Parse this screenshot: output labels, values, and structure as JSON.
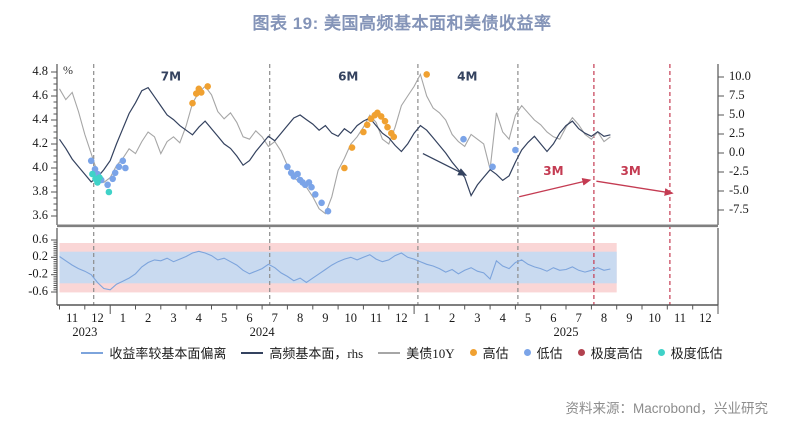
{
  "title": "图表 19: 美国高频基本面和美债收益率",
  "source": "资料来源：Macrobond，兴业研究",
  "colors": {
    "title": "#8494b8",
    "navy": "#34425f",
    "gray_line": "#a6a6a6",
    "light_blue": "#7da4dc",
    "orange": "#f0a131",
    "blue_dot": "#7ba4e8",
    "cyan": "#3fd2c8",
    "dark_red": "#b2424f",
    "red_annotation": "#c43b52",
    "gray_dash": "#8c8c8c",
    "axis": "#555555",
    "thick_axis": "#808080",
    "band_pink": "#fad6d6",
    "band_blue": "#c9daf0",
    "tick_text": "#1a1a1a"
  },
  "legend": {
    "items": [
      {
        "label": "收益率较基本面偏离",
        "type": "line",
        "color": "light_blue"
      },
      {
        "label": "高频基本面，rhs",
        "type": "line",
        "color": "navy"
      },
      {
        "label": "美债10Y",
        "type": "line",
        "color": "gray_line"
      },
      {
        "label": "高估",
        "type": "dot",
        "color": "orange"
      },
      {
        "label": "低估",
        "type": "dot",
        "color": "blue_dot"
      },
      {
        "label": "极度高估",
        "type": "dot",
        "color": "dark_red"
      },
      {
        "label": "极度低估",
        "type": "dot",
        "color": "cyan"
      }
    ]
  },
  "chart_data": {
    "type": "line",
    "title": "图表 19: 美国高频基本面和美债收益率",
    "x_description": "t = months since 2023-11-01, series sampled weekly (dt = 0.25 month), Nov 2023 - Aug 2025",
    "x_axis": {
      "month_labels": [
        "11",
        "12",
        "1",
        "2",
        "3",
        "4",
        "5",
        "6",
        "7",
        "8",
        "9",
        "10",
        "11",
        "12",
        "1",
        "2",
        "3",
        "4",
        "5",
        "6",
        "7",
        "8",
        "9",
        "10",
        "11",
        "12"
      ],
      "years": [
        {
          "label": "2023",
          "t": 1
        },
        {
          "label": "2024",
          "t": 8
        },
        {
          "label": "2025",
          "t": 20
        }
      ],
      "t_range": [
        0,
        26
      ]
    },
    "top_panel": {
      "left_axis": {
        "unit": "%",
        "ticks": [
          4.8,
          4.6,
          4.4,
          4.2,
          4.0,
          3.8,
          3.6
        ],
        "range": [
          3.525,
          4.87
        ]
      },
      "right_axis": {
        "ticks": [
          10.0,
          7.5,
          5.0,
          2.5,
          0.0,
          -2.5,
          -5.0,
          -7.5
        ],
        "range": [
          -9.5,
          11.7
        ]
      },
      "series": [
        {
          "name": "美债10Y",
          "axis": "left",
          "color": "gray_line",
          "t0": 0,
          "dt": 0.25,
          "values": [
            4.66,
            4.57,
            4.63,
            4.47,
            4.28,
            4.12,
            3.96,
            3.88,
            3.92,
            4.02,
            4.08,
            4.16,
            4.12,
            4.22,
            4.3,
            4.26,
            4.12,
            4.22,
            4.26,
            4.21,
            4.35,
            4.54,
            4.63,
            4.68,
            4.61,
            4.47,
            4.41,
            4.46,
            4.38,
            4.26,
            4.24,
            4.31,
            4.26,
            4.18,
            4.22,
            4.14,
            4.02,
            3.92,
            3.88,
            3.84,
            3.76,
            3.66,
            3.62,
            3.76,
            3.98,
            4.08,
            4.2,
            4.26,
            4.34,
            4.44,
            4.38,
            4.24,
            4.2,
            4.34,
            4.52,
            4.6,
            4.68,
            4.78,
            4.6,
            4.5,
            4.46,
            4.4,
            4.28,
            4.22,
            4.18,
            4.28,
            4.24,
            4.2,
            3.99,
            4.46,
            4.3,
            4.24,
            4.44,
            4.52,
            4.46,
            4.4,
            4.36,
            4.3,
            4.26,
            4.24,
            4.34,
            4.42,
            4.36,
            4.28,
            4.24,
            4.3,
            4.22,
            4.26
          ]
        },
        {
          "name": "高频基本面，rhs",
          "axis": "right",
          "color": "navy",
          "t0": 0,
          "dt": 0.25,
          "values": [
            1.8,
            0.6,
            -0.8,
            -1.8,
            -2.8,
            -3.8,
            -3.2,
            -2.2,
            -1.0,
            1.2,
            3.2,
            5.2,
            6.6,
            8.2,
            8.6,
            7.4,
            6.2,
            5.0,
            4.4,
            3.6,
            3.0,
            2.4,
            3.4,
            4.2,
            3.2,
            2.2,
            1.2,
            0.6,
            -0.4,
            -1.6,
            -1.0,
            0.2,
            1.2,
            2.2,
            1.6,
            2.6,
            3.6,
            4.6,
            5.0,
            4.4,
            3.8,
            3.0,
            3.6,
            2.6,
            2.2,
            3.2,
            2.6,
            3.6,
            4.2,
            4.6,
            3.6,
            2.6,
            2.0,
            1.0,
            0.2,
            1.2,
            2.6,
            3.6,
            3.0,
            2.0,
            1.0,
            0.0,
            -1.2,
            -2.2,
            -3.2,
            -5.6,
            -4.2,
            -3.2,
            -2.2,
            -2.8,
            -3.6,
            -3.0,
            -1.2,
            0.4,
            1.4,
            2.2,
            1.2,
            0.2,
            1.2,
            2.6,
            3.6,
            4.2,
            3.2,
            2.6,
            2.2,
            2.8,
            2.2,
            2.4
          ]
        }
      ],
      "dots": [
        {
          "name": "overvalued",
          "label": "高估",
          "color": "orange",
          "points": [
            [
              5.25,
              4.54
            ],
            [
              5.4,
              4.62
            ],
            [
              5.5,
              4.66
            ],
            [
              5.6,
              4.63
            ],
            [
              5.85,
              4.68
            ],
            [
              11.25,
              4.0
            ],
            [
              11.55,
              4.17
            ],
            [
              12.0,
              4.3
            ],
            [
              12.15,
              4.36
            ],
            [
              12.3,
              4.41
            ],
            [
              12.45,
              4.44
            ],
            [
              12.55,
              4.46
            ],
            [
              12.7,
              4.43
            ],
            [
              12.85,
              4.39
            ],
            [
              12.95,
              4.34
            ],
            [
              13.1,
              4.29
            ],
            [
              13.2,
              4.26
            ],
            [
              14.5,
              4.78
            ]
          ]
        },
        {
          "name": "undervalued",
          "label": "低估",
          "color": "blue_dot",
          "points": [
            [
              1.25,
              4.06
            ],
            [
              1.4,
              3.99
            ],
            [
              1.5,
              3.95
            ],
            [
              1.65,
              3.9
            ],
            [
              1.9,
              3.86
            ],
            [
              2.1,
              3.91
            ],
            [
              2.2,
              3.96
            ],
            [
              2.35,
              4.01
            ],
            [
              2.5,
              4.06
            ],
            [
              2.6,
              4.0
            ],
            [
              9.0,
              4.01
            ],
            [
              9.15,
              3.96
            ],
            [
              9.25,
              3.93
            ],
            [
              9.4,
              3.95
            ],
            [
              9.5,
              3.9
            ],
            [
              9.6,
              3.88
            ],
            [
              9.7,
              3.86
            ],
            [
              9.85,
              3.88
            ],
            [
              9.95,
              3.84
            ],
            [
              10.1,
              3.78
            ],
            [
              10.35,
              3.71
            ],
            [
              10.6,
              3.64
            ],
            [
              15.95,
              4.24
            ],
            [
              17.1,
              4.01
            ],
            [
              18.0,
              4.15
            ]
          ]
        },
        {
          "name": "extreme-overvalued",
          "label": "极度高估",
          "color": "dark_red",
          "points": []
        },
        {
          "name": "extreme-undervalued",
          "label": "极度低估",
          "color": "cyan",
          "points": [
            [
              1.3,
              3.95
            ],
            [
              1.42,
              3.91
            ],
            [
              1.5,
              3.88
            ],
            [
              1.58,
              3.92
            ],
            [
              1.95,
              3.8
            ]
          ]
        }
      ],
      "vlines": [
        {
          "t": 1.35,
          "color": "gray_dash"
        },
        {
          "t": 8.3,
          "color": "gray_dash"
        },
        {
          "t": 14.15,
          "color": "gray_dash"
        },
        {
          "t": 18.1,
          "color": "gray_dash"
        },
        {
          "t": 21.1,
          "color": "red_annotation"
        },
        {
          "t": 24.1,
          "color": "red_annotation"
        }
      ],
      "interval_labels": [
        {
          "text": "7M",
          "t": 4.4,
          "v": 4.76,
          "color": "navy"
        },
        {
          "text": "6M",
          "t": 11.4,
          "v": 4.76,
          "color": "navy"
        },
        {
          "text": "4M",
          "t": 16.1,
          "v": 4.76,
          "color": "navy"
        },
        {
          "text": "3M",
          "t": 19.5,
          "v": 3.97,
          "color": "red_annotation"
        },
        {
          "text": "3M",
          "t": 22.55,
          "v": 3.97,
          "color": "red_annotation"
        }
      ],
      "arrows": [
        {
          "from": [
            14.35,
            4.12
          ],
          "to": [
            16.05,
            3.94
          ],
          "color": "navy"
        },
        {
          "from": [
            18.15,
            3.76
          ],
          "to": [
            20.95,
            3.9
          ],
          "color": "red_annotation"
        },
        {
          "from": [
            21.2,
            3.89
          ],
          "to": [
            24.2,
            3.79
          ],
          "color": "red_annotation"
        }
      ]
    },
    "bottom_panel": {
      "ticks": [
        0.6,
        0.2,
        -0.2,
        -0.6
      ],
      "range": [
        -0.9,
        0.88
      ],
      "bands": [
        {
          "name": "outer-pink",
          "color": "band_pink",
          "t0": 0,
          "t1": 22,
          "top": 0.53,
          "bottom": -0.61
        },
        {
          "name": "inner-blue",
          "color": "band_blue",
          "t0": 0,
          "t1": 22,
          "top": 0.33,
          "bottom": -0.4
        }
      ],
      "series": [
        {
          "name": "收益率较基本面偏离",
          "color": "light_blue",
          "t0": 0,
          "dt": 0.25,
          "values": [
            0.22,
            0.12,
            0.02,
            -0.06,
            -0.12,
            -0.2,
            -0.38,
            -0.52,
            -0.55,
            -0.42,
            -0.35,
            -0.28,
            -0.18,
            -0.02,
            0.08,
            0.14,
            0.12,
            0.18,
            0.1,
            0.16,
            0.22,
            0.3,
            0.34,
            0.3,
            0.24,
            0.14,
            0.18,
            0.1,
            0.02,
            -0.1,
            -0.18,
            -0.12,
            -0.06,
            0.04,
            -0.04,
            -0.16,
            -0.24,
            -0.34,
            -0.28,
            -0.38,
            -0.28,
            -0.18,
            -0.08,
            0.02,
            0.1,
            0.16,
            0.2,
            0.14,
            0.2,
            0.26,
            0.16,
            0.1,
            0.14,
            0.24,
            0.3,
            0.2,
            0.16,
            0.1,
            0.04,
            0.0,
            -0.06,
            -0.14,
            -0.08,
            -0.18,
            -0.1,
            -0.04,
            -0.12,
            -0.16,
            -0.3,
            0.12,
            0.0,
            -0.06,
            0.08,
            0.14,
            0.04,
            -0.02,
            -0.06,
            -0.12,
            -0.04,
            -0.1,
            -0.08,
            -0.02,
            -0.1,
            -0.14,
            -0.1,
            -0.04,
            -0.1,
            -0.07
          ]
        }
      ]
    }
  }
}
